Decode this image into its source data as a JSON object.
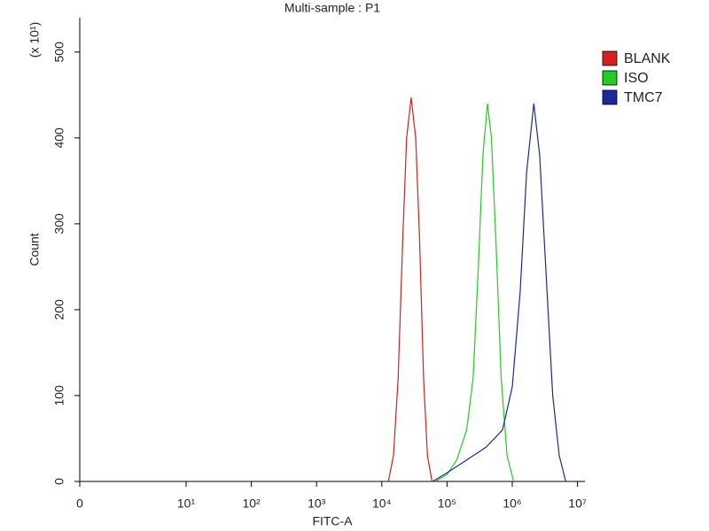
{
  "chart_data": {
    "type": "line",
    "title": "Multi-sample : P1",
    "xlabel": "FITC-A",
    "ylabel": "Count",
    "ymultiplier": "(x 10¹)",
    "xscale": "log",
    "xlim": [
      0,
      13000000
    ],
    "xticks": [
      0,
      {
        "value": 10,
        "label": "10¹"
      },
      {
        "value": 100,
        "label": "10²"
      },
      {
        "value": 1000,
        "label": "10³"
      },
      {
        "value": 10000,
        "label": "10⁴"
      },
      {
        "value": 100000,
        "label": "10⁵"
      },
      {
        "value": 1000000,
        "label": "10⁶"
      },
      {
        "value": 10000000,
        "label": "10⁷"
      }
    ],
    "ylim": [
      0,
      540
    ],
    "yticks": [
      0,
      100,
      200,
      300,
      400,
      500
    ],
    "legend": "upper right",
    "series": [
      {
        "name": "BLANK",
        "color": "#d42020",
        "x": [
          12600,
          15100,
          17800,
          20900,
          24000,
          28200,
          33100,
          38000,
          43700,
          50100,
          58900
        ],
        "values": [
          0,
          30,
          120,
          280,
          400,
          447,
          400,
          280,
          120,
          30,
          0
        ]
      },
      {
        "name": "ISO",
        "color": "#22cc22",
        "x": [
          66100,
          100000,
          141000,
          200000,
          251000,
          302000,
          355000,
          417000,
          479000,
          562000,
          676000,
          832000,
          1050000
        ],
        "values": [
          0,
          8,
          25,
          60,
          120,
          250,
          380,
          440,
          400,
          280,
          120,
          30,
          0
        ]
      },
      {
        "name": "TMC7",
        "color": "#1a2a9a",
        "x": [
          60300,
          100000,
          200000,
          398000,
          708000,
          1000000,
          1320000,
          1660000,
          2140000,
          2630000,
          3310000,
          4170000,
          5250000,
          6610000
        ],
        "values": [
          0,
          10,
          25,
          40,
          60,
          110,
          220,
          360,
          440,
          380,
          240,
          100,
          30,
          0
        ]
      }
    ]
  }
}
